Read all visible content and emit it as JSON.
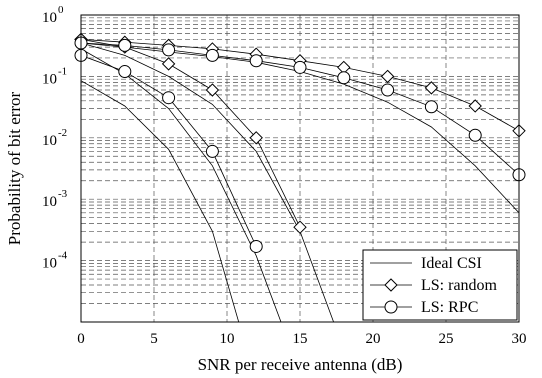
{
  "chart_data": {
    "type": "line",
    "xlabel": "SNR per receive antenna (dB)",
    "ylabel": "Probability of bit error",
    "xlim": [
      0,
      30
    ],
    "ylim": [
      1e-05,
      1
    ],
    "yscale": "log",
    "grid": true,
    "x_ticks": [
      "0",
      "5",
      "10",
      "15",
      "20",
      "25",
      "30"
    ],
    "y_tick_bases": [
      "10",
      "10",
      "10",
      "10",
      "10"
    ],
    "y_tick_exponents": [
      "0",
      "-1",
      "-2",
      "-3",
      "-4"
    ],
    "legend_position": "bottom-right",
    "legend": [
      "Ideal CSI",
      "LS: random",
      "LS: RPC"
    ],
    "groups": [
      {
        "name": "Ideal CSI",
        "marker": "none",
        "curves": [
          {
            "x": [
              0,
              3,
              6,
              9,
              10.8
            ],
            "y": [
              0.085,
              0.033,
              0.0065,
              0.0003,
              1e-05
            ]
          },
          {
            "x": [
              0,
              3,
              6,
              9,
              12,
              13.7
            ],
            "y": [
              0.28,
              0.11,
              0.03,
              0.0035,
              0.00012,
              1e-05
            ]
          },
          {
            "x": [
              0,
              3,
              6,
              9,
              12,
              15,
              17.3
            ],
            "y": [
              0.35,
              0.22,
              0.1,
              0.035,
              0.006,
              0.0003,
              1e-05
            ]
          },
          {
            "x": [
              0,
              3,
              6,
              9,
              12,
              15,
              18,
              21,
              24,
              27,
              30
            ],
            "y": [
              0.35,
              0.3,
              0.25,
              0.21,
              0.17,
              0.12,
              0.075,
              0.038,
              0.015,
              0.0035,
              0.0006
            ]
          }
        ]
      },
      {
        "name": "LS: random",
        "marker": "diamond",
        "curves": [
          {
            "x": [
              0,
              3,
              6,
              9,
              12,
              15
            ],
            "y": [
              0.4,
              0.3,
              0.16,
              0.06,
              0.01,
              0.00035
            ]
          },
          {
            "x": [
              0,
              3,
              6,
              9,
              12,
              15,
              18,
              21,
              24,
              27,
              30
            ],
            "y": [
              0.4,
              0.36,
              0.32,
              0.28,
              0.23,
              0.18,
              0.14,
              0.1,
              0.065,
              0.033,
              0.013
            ]
          }
        ]
      },
      {
        "name": "LS: RPC",
        "marker": "circle",
        "curves": [
          {
            "x": [
              0,
              3,
              6,
              9,
              12
            ],
            "y": [
              0.22,
              0.12,
              0.045,
              0.006,
              0.00017
            ]
          },
          {
            "x": [
              0,
              3,
              6,
              9,
              12,
              15,
              18,
              21,
              24,
              27,
              30
            ],
            "y": [
              0.35,
              0.32,
              0.27,
              0.22,
              0.18,
              0.14,
              0.095,
              0.06,
              0.032,
              0.011,
              0.0025
            ]
          }
        ]
      }
    ]
  }
}
